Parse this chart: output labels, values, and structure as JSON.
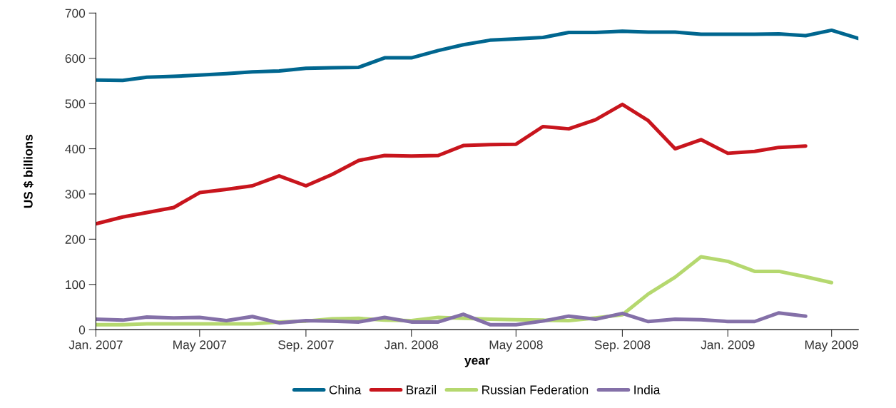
{
  "chart_data": {
    "type": "line",
    "xlabel": "year",
    "ylabel": "US $ billions",
    "x": [
      "2007-01",
      "2007-02",
      "2007-03",
      "2007-04",
      "2007-05",
      "2007-06",
      "2007-07",
      "2007-08",
      "2007-09",
      "2007-10",
      "2007-11",
      "2007-12",
      "2008-01",
      "2008-02",
      "2008-03",
      "2008-04",
      "2008-05",
      "2008-06",
      "2008-07",
      "2008-08",
      "2008-09",
      "2008-10",
      "2008-11",
      "2008-12",
      "2009-01",
      "2009-02",
      "2009-03",
      "2009-04",
      "2009-05",
      "2009-06"
    ],
    "series": [
      {
        "name": "China",
        "color": "#00668f",
        "values": [
          552,
          551,
          558,
          560,
          563,
          566,
          570,
          572,
          578,
          579,
          580,
          601,
          601,
          617,
          630,
          640,
          643,
          646,
          657,
          657,
          660,
          658,
          658,
          653,
          653,
          653,
          654,
          650,
          662,
          644
        ]
      },
      {
        "name": "Brazil",
        "color": "#c8151d",
        "values": [
          234,
          249,
          259,
          270,
          303,
          310,
          318,
          340,
          318,
          343,
          374,
          385,
          384,
          385,
          407,
          409,
          410,
          449,
          444,
          464,
          498,
          462,
          400,
          420,
          390,
          394,
          403,
          406,
          null,
          null
        ]
      },
      {
        "name": "Russian Federation",
        "color": "#b5d86f",
        "values": [
          11,
          11,
          13,
          13,
          13,
          13,
          13,
          17,
          19,
          24,
          25,
          21,
          20,
          27,
          25,
          23,
          22,
          21,
          20,
          26,
          33,
          79,
          116,
          161,
          151,
          129,
          129,
          117,
          104,
          null
        ]
      },
      {
        "name": "India",
        "color": "#8470a8",
        "values": [
          23,
          21,
          28,
          26,
          27,
          20,
          29,
          15,
          20,
          19,
          17,
          27,
          17,
          17,
          34,
          11,
          11,
          19,
          30,
          23,
          36,
          18,
          23,
          22,
          18,
          18,
          37,
          30,
          null,
          null
        ]
      }
    ],
    "xlim": [
      "2007-01",
      "2009-06"
    ],
    "xticks": [
      {
        "value": "2007-01",
        "label": "Jan. 2007"
      },
      {
        "value": "2007-05",
        "label": "May 2007"
      },
      {
        "value": "2007-09",
        "label": "Sep. 2007"
      },
      {
        "value": "2008-01",
        "label": "Jan. 2008"
      },
      {
        "value": "2008-05",
        "label": "May 2008"
      },
      {
        "value": "2008-09",
        "label": "Sep. 2008"
      },
      {
        "value": "2009-01",
        "label": "Jan. 2009"
      },
      {
        "value": "2009-05",
        "label": "May 2009"
      }
    ],
    "ylim": [
      0,
      700
    ],
    "yticks": [
      0,
      100,
      200,
      300,
      400,
      500,
      600,
      700
    ],
    "grid": false,
    "legend": "bottom",
    "marker": "none",
    "line_style": "solid"
  }
}
